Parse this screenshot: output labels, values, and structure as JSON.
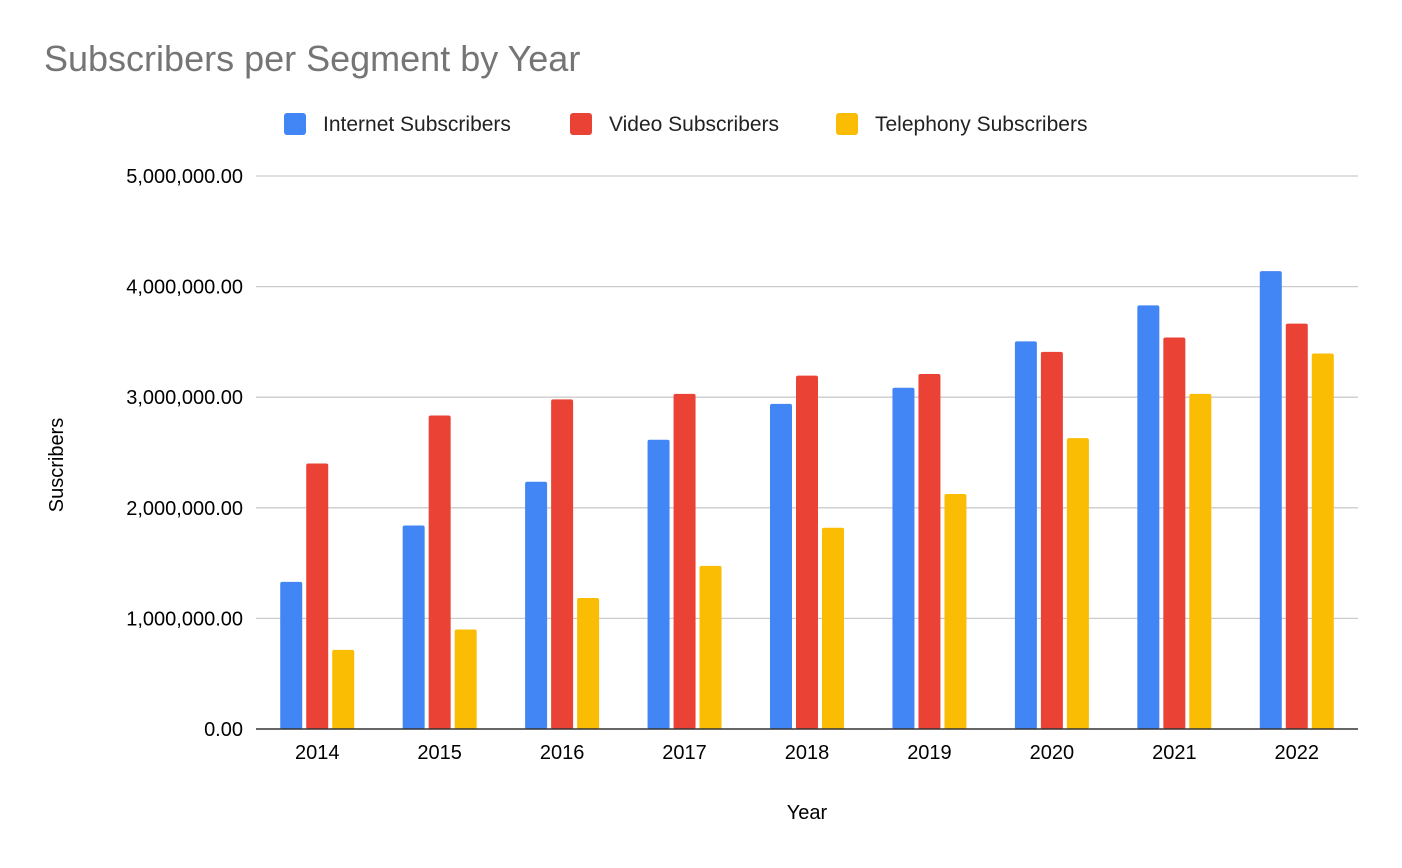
{
  "chart_data": {
    "type": "bar",
    "title": "Subscribers per Segment by Year",
    "xlabel": "Year",
    "ylabel": "Suscribers",
    "categories": [
      "2014",
      "2015",
      "2016",
      "2017",
      "2018",
      "2019",
      "2020",
      "2021",
      "2022"
    ],
    "series": [
      {
        "name": "Internet Subscribers",
        "color": "#4285f4",
        "values": [
          1330000,
          1840000,
          2235000,
          2615000,
          2940000,
          3085000,
          3505000,
          3830000,
          4140000
        ]
      },
      {
        "name": "Video Subscribers",
        "color": "#ea4335",
        "values": [
          2400000,
          2835000,
          2980000,
          3030000,
          3195000,
          3210000,
          3410000,
          3540000,
          3665000
        ]
      },
      {
        "name": "Telephony Subscribers",
        "color": "#fbbc04",
        "values": [
          715000,
          900000,
          1185000,
          1475000,
          1820000,
          2125000,
          2630000,
          3030000,
          3395000
        ]
      }
    ],
    "ylim": [
      0,
      5000000
    ],
    "y_ticks": [
      0,
      1000000,
      2000000,
      3000000,
      4000000,
      5000000
    ],
    "y_tick_labels": [
      "0.00",
      "1,000,000.00",
      "2,000,000.00",
      "3,000,000.00",
      "4,000,000.00",
      "5,000,000.00"
    ],
    "grid": true,
    "legend_position": "top"
  }
}
